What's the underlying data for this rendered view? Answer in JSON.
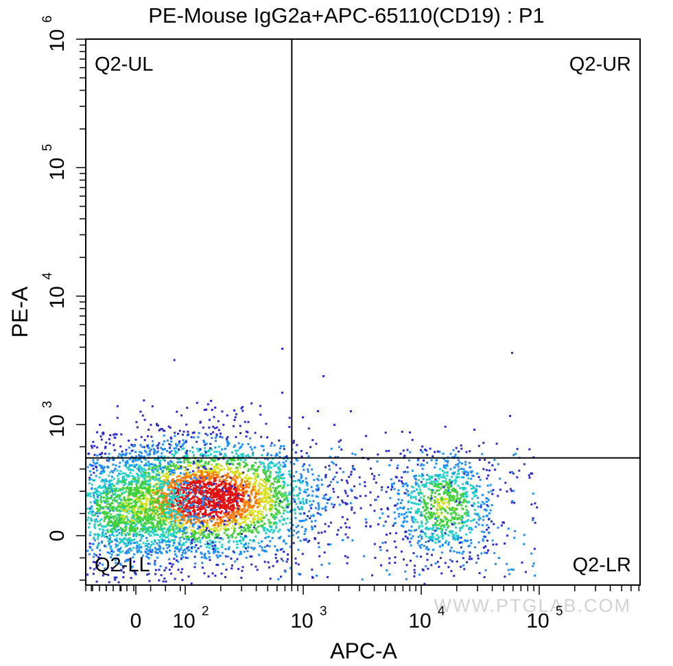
{
  "chart_data": {
    "type": "scatter",
    "subtype": "flow-cytometry-density-dot-plot",
    "title": "PE-Mouse IgG2a+APC-65110(CD19) : P1",
    "xlabel": "APC-A",
    "ylabel": "PE-A",
    "x_scale": "biexponential",
    "y_scale": "biexponential",
    "x_ticks": [
      {
        "base": "0",
        "exp": "",
        "value": 0
      },
      {
        "base": "10",
        "exp": "2",
        "value": 100
      },
      {
        "base": "10",
        "exp": "3",
        "value": 1000
      },
      {
        "base": "10",
        "exp": "4",
        "value": 10000
      },
      {
        "base": "10",
        "exp": "5",
        "value": 100000
      }
    ],
    "y_ticks": [
      {
        "base": "0",
        "exp": "",
        "value": 0
      },
      {
        "base": "10",
        "exp": "3",
        "value": 1000
      },
      {
        "base": "10",
        "exp": "4",
        "value": 10000
      },
      {
        "base": "10",
        "exp": "5",
        "value": 100000
      },
      {
        "base": "10",
        "exp": "6",
        "value": 1000000
      }
    ],
    "quadrant_gates": {
      "x": 800,
      "y": 700
    },
    "quadrants": [
      {
        "id": "UL",
        "label": "Q2-UL"
      },
      {
        "id": "UR",
        "label": "Q2-UR"
      },
      {
        "id": "LL",
        "label": "Q2-LL"
      },
      {
        "id": "LR",
        "label": "Q2-LR"
      }
    ],
    "populations": [
      {
        "description": "unstained/negative cluster",
        "x_center": 200,
        "y_center": 150,
        "density": "high"
      },
      {
        "description": "APC-positive (CD19+) cluster",
        "x_center": 12000,
        "y_center": 120,
        "density": "medium"
      }
    ],
    "colormap": [
      "#2a2ad0",
      "#1a8cff",
      "#1fd0c8",
      "#3fd03a",
      "#d8e020",
      "#ff7a00",
      "#e01010"
    ],
    "grid": false,
    "legend": "none"
  },
  "watermark": "WWW.PTGLAB.COM"
}
